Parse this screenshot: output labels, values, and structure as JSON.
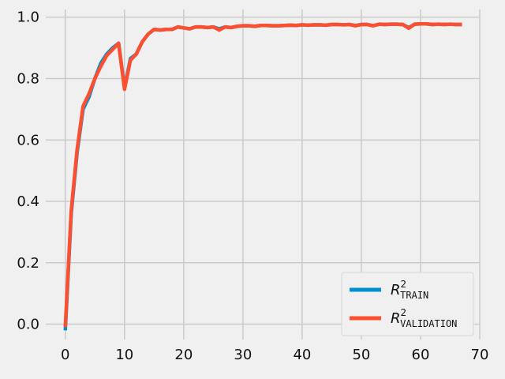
{
  "chart_data": {
    "type": "line",
    "title": "",
    "xlabel": "",
    "ylabel": "",
    "xlim": [
      -3.3,
      70
    ],
    "ylim": [
      -0.05,
      1.025
    ],
    "xticks": [
      0,
      10,
      20,
      30,
      40,
      50,
      60,
      70
    ],
    "yticks": [
      0.0,
      0.2,
      0.4,
      0.6,
      0.8,
      1.0
    ],
    "xtick_labels": [
      "0",
      "10",
      "20",
      "30",
      "40",
      "50",
      "60",
      "70"
    ],
    "ytick_labels": [
      "0.0",
      "0.2",
      "0.4",
      "0.6",
      "0.8",
      "1.0"
    ],
    "grid": true,
    "legend_position": "lower-right",
    "series": [
      {
        "name_base": "R",
        "name_sup": "2",
        "name_sub": "TRAIN",
        "color": "#008fd5",
        "x": [
          0,
          1,
          2,
          3,
          4,
          5,
          6,
          7,
          8,
          9,
          10,
          11,
          12,
          13,
          14,
          15,
          16,
          17,
          18,
          19,
          20,
          21,
          22,
          23,
          24,
          25,
          26,
          27,
          28,
          29,
          30,
          31,
          32,
          33,
          34,
          35,
          36,
          37,
          38,
          39,
          40,
          41,
          42,
          43,
          44,
          45,
          46,
          47,
          48,
          49,
          50,
          51,
          52,
          53,
          54,
          55,
          56,
          57,
          58,
          59,
          60,
          61,
          62,
          63,
          64,
          65,
          66,
          67
        ],
        "y": [
          -0.02,
          0.36,
          0.56,
          0.7,
          0.74,
          0.8,
          0.85,
          0.88,
          0.9,
          0.915,
          0.77,
          0.865,
          0.88,
          0.92,
          0.945,
          0.96,
          0.958,
          0.96,
          0.96,
          0.968,
          0.965,
          0.962,
          0.968,
          0.968,
          0.966,
          0.968,
          0.962,
          0.968,
          0.966,
          0.97,
          0.972,
          0.972,
          0.97,
          0.973,
          0.973,
          0.972,
          0.972,
          0.973,
          0.974,
          0.973,
          0.975,
          0.974,
          0.975,
          0.975,
          0.974,
          0.976,
          0.976,
          0.975,
          0.976,
          0.973,
          0.976,
          0.976,
          0.972,
          0.977,
          0.976,
          0.977,
          0.977,
          0.976,
          0.966,
          0.977,
          0.978,
          0.978,
          0.976,
          0.977,
          0.976,
          0.977,
          0.976,
          0.976
        ]
      },
      {
        "name_base": "R",
        "name_sup": "2",
        "name_sub": "VALIDATION",
        "color": "#fc4f30",
        "x": [
          0,
          1,
          2,
          3,
          4,
          5,
          6,
          7,
          8,
          9,
          10,
          11,
          12,
          13,
          14,
          15,
          16,
          17,
          18,
          19,
          20,
          21,
          22,
          23,
          24,
          25,
          26,
          27,
          28,
          29,
          30,
          31,
          32,
          33,
          34,
          35,
          36,
          37,
          38,
          39,
          40,
          41,
          42,
          43,
          44,
          45,
          46,
          47,
          48,
          49,
          50,
          51,
          52,
          53,
          54,
          55,
          56,
          57,
          58,
          59,
          60,
          61,
          62,
          63,
          64,
          65,
          66,
          67
        ],
        "y": [
          -0.01,
          0.37,
          0.57,
          0.71,
          0.75,
          0.8,
          0.84,
          0.875,
          0.895,
          0.915,
          0.765,
          0.86,
          0.88,
          0.92,
          0.945,
          0.96,
          0.958,
          0.96,
          0.96,
          0.968,
          0.965,
          0.962,
          0.968,
          0.968,
          0.966,
          0.968,
          0.958,
          0.968,
          0.966,
          0.97,
          0.972,
          0.972,
          0.97,
          0.973,
          0.973,
          0.972,
          0.972,
          0.973,
          0.974,
          0.973,
          0.975,
          0.974,
          0.975,
          0.975,
          0.974,
          0.976,
          0.976,
          0.975,
          0.976,
          0.972,
          0.976,
          0.976,
          0.972,
          0.977,
          0.976,
          0.977,
          0.977,
          0.976,
          0.964,
          0.977,
          0.978,
          0.978,
          0.976,
          0.977,
          0.976,
          0.977,
          0.976,
          0.976
        ]
      }
    ]
  },
  "colors": {
    "background": "#f0f0f0",
    "grid": "#cbcbcb",
    "legend_bg": "#f0f0f0",
    "legend_border": "#d6d6d6"
  }
}
